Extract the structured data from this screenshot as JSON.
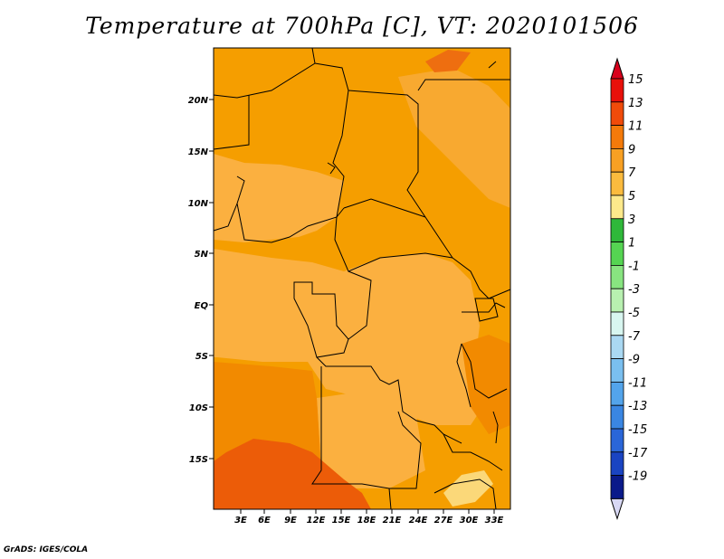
{
  "title": "Temperature at 700hPa [C], VT: 2020101506",
  "footer": "GrADS: IGES/COLA",
  "map": {
    "lat_labels": [
      "20N",
      "15N",
      "10N",
      "5N",
      "EQ",
      "5S",
      "10S",
      "15S"
    ],
    "lon_labels": [
      "3E",
      "6E",
      "9E",
      "12E",
      "15E",
      "18E",
      "21E",
      "24E",
      "27E",
      "30E",
      "33E"
    ],
    "colors": {
      "base": "#f59e00",
      "warm": "#f28a00",
      "hot": "#ec5c08",
      "mild": "#fbb040",
      "cool": "#fbd879",
      "border": "#000000"
    }
  },
  "colorbar": {
    "labels": [
      "15",
      "13",
      "11",
      "9",
      "7",
      "5",
      "3",
      "1",
      "-1",
      "-3",
      "-5",
      "-7",
      "-9",
      "-11",
      "-13",
      "-15",
      "-17",
      "-19"
    ],
    "colors": [
      "#e8100a",
      "#f04b0a",
      "#f47a0a",
      "#f8a023",
      "#fbbb3e",
      "#fde98b",
      "#2fb83a",
      "#55d452",
      "#88e480",
      "#b8f0b0",
      "#d8f6f0",
      "#aad8f2",
      "#7abfef",
      "#53a4eb",
      "#3a86e2",
      "#2a66d8",
      "#1a44c2",
      "#0a1a8a"
    ],
    "top_arrow_color": "#d8001c",
    "bottom_arrow_color": "#d8d8f4"
  }
}
